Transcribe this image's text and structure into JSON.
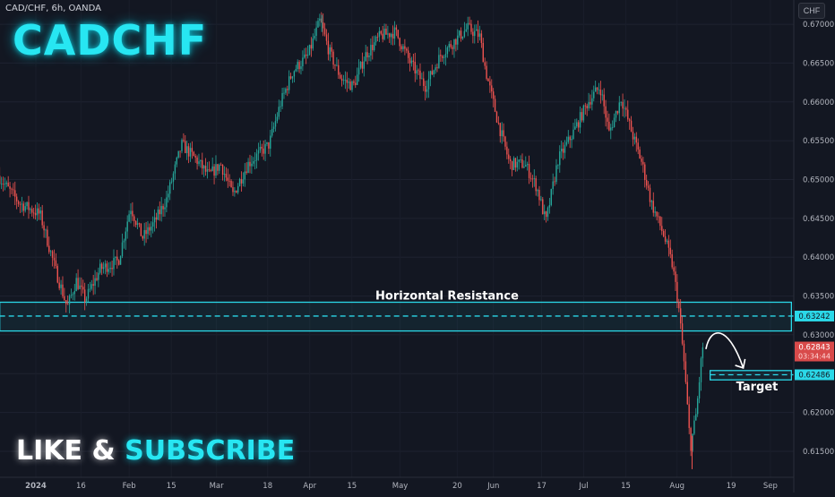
{
  "header": {
    "symbol_info": "CAD/CHF, 6h, OANDA",
    "big_title": "CADCHF",
    "currency_button": "CHF"
  },
  "cta": {
    "like": "LIKE",
    "amp": "&",
    "subscribe": "SUBSCRIBE"
  },
  "colors": {
    "background": "#131722",
    "up": "#26a69a",
    "down": "#ef5350",
    "zone": "#2bd8e8",
    "last_price_bg": "#d84a4a"
  },
  "chart_data": {
    "type": "candlestick",
    "timeframe": "6h",
    "y_axis": {
      "ticks": [
        0.615,
        0.62,
        0.625,
        0.63,
        0.635,
        0.64,
        0.645,
        0.65,
        0.655,
        0.66,
        0.665,
        0.67
      ],
      "tick_labels": [
        "0.61500",
        "0.62000",
        "0.62500",
        "0.63000",
        "0.63500",
        "0.64000",
        "0.64500",
        "0.65000",
        "0.65500",
        "0.66000",
        "0.66500",
        "0.67000"
      ]
    },
    "x_axis": {
      "tick_labels": [
        "2024",
        "16",
        "Feb",
        "15",
        "Mar",
        "18",
        "Apr",
        "15",
        "May",
        "20",
        "Jun",
        "17",
        "Jul",
        "15",
        "Aug",
        "19",
        "Sep"
      ],
      "tick_dates": [
        "2024-01-01",
        "2024-01-16",
        "2024-02-01",
        "2024-02-15",
        "2024-03-01",
        "2024-03-18",
        "2024-04-01",
        "2024-04-15",
        "2024-05-01",
        "2024-05-20",
        "2024-06-01",
        "2024-06-17",
        "2024-07-01",
        "2024-07-15",
        "2024-08-01",
        "2024-08-19",
        "2024-09-01"
      ]
    },
    "price_path": [
      [
        "2023-12-20",
        0.6505
      ],
      [
        "2023-12-27",
        0.647
      ],
      [
        "2024-01-03",
        0.6455
      ],
      [
        "2024-01-08",
        0.6385
      ],
      [
        "2024-01-12",
        0.6335
      ],
      [
        "2024-01-15",
        0.637
      ],
      [
        "2024-01-18",
        0.6345
      ],
      [
        "2024-01-23",
        0.6385
      ],
      [
        "2024-01-29",
        0.6395
      ],
      [
        "2024-02-02",
        0.6465
      ],
      [
        "2024-02-06",
        0.6425
      ],
      [
        "2024-02-10",
        0.6445
      ],
      [
        "2024-02-14",
        0.6475
      ],
      [
        "2024-02-19",
        0.6545
      ],
      [
        "2024-02-24",
        0.6525
      ],
      [
        "2024-02-28",
        0.6505
      ],
      [
        "2024-03-03",
        0.652
      ],
      [
        "2024-03-07",
        0.648
      ],
      [
        "2024-03-12",
        0.652
      ],
      [
        "2024-03-19",
        0.6545
      ],
      [
        "2024-03-23",
        0.66
      ],
      [
        "2024-03-27",
        0.664
      ],
      [
        "2024-04-01",
        0.666
      ],
      [
        "2024-04-05",
        0.6705
      ],
      [
        "2024-04-08",
        0.6665
      ],
      [
        "2024-04-12",
        0.663
      ],
      [
        "2024-04-16",
        0.662
      ],
      [
        "2024-04-20",
        0.666
      ],
      [
        "2024-04-25",
        0.6685
      ],
      [
        "2024-04-30",
        0.669
      ],
      [
        "2024-05-05",
        0.665
      ],
      [
        "2024-05-10",
        0.662
      ],
      [
        "2024-05-15",
        0.666
      ],
      [
        "2024-05-20",
        0.668
      ],
      [
        "2024-05-24",
        0.6695
      ],
      [
        "2024-05-28",
        0.6685
      ],
      [
        "2024-05-30",
        0.664
      ],
      [
        "2024-06-03",
        0.6575
      ],
      [
        "2024-06-07",
        0.652
      ],
      [
        "2024-06-12",
        0.652
      ],
      [
        "2024-06-16",
        0.649
      ],
      [
        "2024-06-19",
        0.6445
      ],
      [
        "2024-06-23",
        0.6525
      ],
      [
        "2024-06-28",
        0.656
      ],
      [
        "2024-07-03",
        0.66
      ],
      [
        "2024-07-07",
        0.662
      ],
      [
        "2024-07-10",
        0.656
      ],
      [
        "2024-07-14",
        0.6605
      ],
      [
        "2024-07-18",
        0.6555
      ],
      [
        "2024-07-21",
        0.652
      ],
      [
        "2024-07-24",
        0.647
      ],
      [
        "2024-07-28",
        0.643
      ],
      [
        "2024-07-31",
        0.639
      ],
      [
        "2024-08-02",
        0.634
      ],
      [
        "2024-08-04",
        0.626
      ],
      [
        "2024-08-06",
        0.6155
      ],
      [
        "2024-08-08",
        0.62
      ],
      [
        "2024-08-10",
        0.6284
      ]
    ],
    "price_low": 0.6127,
    "price_high": 0.6712,
    "zones": [
      {
        "name": "Horizontal Resistance",
        "from": "2023-12-20",
        "to": "2024-09-08",
        "low": 0.6305,
        "high": 0.6342,
        "mid": 0.63242
      },
      {
        "name": "Target",
        "from": "2024-08-12",
        "to": "2024-09-08",
        "low": 0.6242,
        "high": 0.6254,
        "mid": 0.62486
      }
    ],
    "projection_arrow": {
      "from": [
        "2024-08-10",
        0.6284
      ],
      "peak": [
        "2024-08-15",
        0.63
      ],
      "to": [
        "2024-08-23",
        0.6255
      ]
    },
    "annotations": [
      "Horizontal Resistance",
      "Target"
    ],
    "price_labels": [
      {
        "value": 0.63242,
        "text": "0.63242",
        "kind": "zone"
      },
      {
        "value": 0.62843,
        "text": "0.62843",
        "subtext": "03:34:44",
        "kind": "last"
      },
      {
        "value": 0.62486,
        "text": "0.62486",
        "kind": "zone"
      }
    ],
    "ylim": [
      0.612,
      0.6722
    ],
    "grid": true,
    "legend": "none"
  }
}
